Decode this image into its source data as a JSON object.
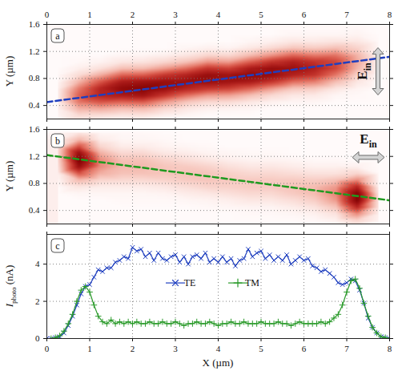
{
  "chart_data": [
    {
      "type": "heatmap",
      "panel": "a",
      "ylabel": "Y (µm)",
      "grid": true,
      "xlim": [
        0,
        8
      ],
      "xticks": [
        0,
        1,
        2,
        3,
        4,
        5,
        6,
        7,
        8
      ],
      "ylim": [
        0.2,
        1.6
      ],
      "yticks": [
        0.4,
        0.8,
        1.2,
        1.6
      ],
      "x": [
        0.25,
        0.75,
        1.25,
        1.75,
        2.25,
        2.75,
        3.25,
        3.75,
        4.25,
        4.75,
        5.25,
        5.75,
        6.25,
        6.75,
        7.25,
        7.75
      ],
      "y": [
        0.05,
        0.15,
        0.25,
        0.35,
        0.45,
        0.55,
        0.65,
        0.75,
        0.85,
        0.95,
        1.05,
        1.15,
        1.25,
        1.35,
        1.45,
        1.55
      ],
      "z": [
        [
          0,
          1,
          2,
          4,
          5,
          5,
          4,
          2,
          1,
          0,
          0,
          0,
          0,
          0,
          0,
          0
        ],
        [
          1,
          5,
          13,
          27,
          43,
          50,
          43,
          27,
          13,
          5,
          1,
          0,
          0,
          0,
          0,
          0
        ],
        [
          0,
          3,
          11,
          29,
          53,
          72,
          72,
          53,
          29,
          11,
          3,
          0,
          0,
          0,
          0,
          0
        ],
        [
          0,
          2,
          8,
          23,
          49,
          77,
          90,
          77,
          49,
          23,
          8,
          2,
          0,
          0,
          0,
          0
        ],
        [
          0,
          2,
          9,
          24,
          51,
          82,
          95,
          82,
          51,
          24,
          9,
          2,
          0,
          0,
          0,
          0
        ],
        [
          0,
          0,
          4,
          14,
          34,
          64,
          86,
          86,
          64,
          34,
          14,
          4,
          0,
          0,
          0,
          0
        ],
        [
          0,
          0,
          2,
          8,
          21,
          46,
          73,
          85,
          73,
          46,
          21,
          8,
          2,
          0,
          0,
          0
        ],
        [
          0,
          0,
          0,
          4,
          14,
          34,
          64,
          86,
          86,
          64,
          34,
          14,
          4,
          0,
          0,
          0
        ],
        [
          0,
          0,
          0,
          3,
          13,
          32,
          60,
          82,
          82,
          60,
          32,
          13,
          3,
          0,
          0,
          0
        ],
        [
          0,
          0,
          0,
          2,
          8,
          23,
          49,
          77,
          90,
          77,
          49,
          23,
          8,
          2,
          0,
          0
        ],
        [
          0,
          0,
          0,
          0,
          4,
          14,
          34,
          64,
          86,
          86,
          64,
          34,
          14,
          4,
          0,
          0
        ],
        [
          0,
          0,
          0,
          0,
          2,
          8,
          21,
          46,
          73,
          85,
          73,
          46,
          21,
          8,
          2,
          0
        ],
        [
          0,
          0,
          0,
          0,
          2,
          7,
          19,
          41,
          65,
          75,
          65,
          41,
          19,
          7,
          2,
          0
        ],
        [
          0,
          0,
          0,
          0,
          0,
          2,
          9,
          23,
          43,
          58,
          58,
          43,
          23,
          9,
          2,
          0
        ],
        [
          0,
          0,
          0,
          0,
          0,
          1,
          3,
          8,
          16,
          26,
          30,
          26,
          16,
          8,
          3,
          1
        ],
        [
          0,
          0,
          0,
          0,
          0,
          0,
          0,
          0,
          1,
          2,
          3,
          3,
          2,
          1,
          0,
          0
        ]
      ],
      "zlim": [
        0,
        100
      ],
      "line": {
        "x": [
          0,
          8
        ],
        "y": [
          0.45,
          1.12
        ],
        "color": "#1f3fbf",
        "line_style": "dashed"
      },
      "annotation": {
        "main": "E",
        "sub": "in",
        "orientation": "vertical"
      }
    },
    {
      "type": "heatmap",
      "panel": "b",
      "ylabel": "Y (µm)",
      "grid": true,
      "tick_labels": "y",
      "xlim": [
        0,
        8
      ],
      "xticks": [
        0,
        1,
        2,
        3,
        4,
        5,
        6,
        7,
        8
      ],
      "ylim": [
        0.2,
        1.6
      ],
      "yticks": [
        0.4,
        0.8,
        1.2,
        1.6
      ],
      "x": [
        0.25,
        0.75,
        1.25,
        1.75,
        2.25,
        2.75,
        3.25,
        3.75,
        4.25,
        4.75,
        5.25,
        5.75,
        6.25,
        6.75,
        7.25,
        7.75
      ],
      "y": [
        0.05,
        0.15,
        0.25,
        0.35,
        0.45,
        0.55,
        0.65,
        0.75,
        0.85,
        0.95,
        1.05,
        1.15,
        1.25,
        1.35,
        1.45,
        1.55
      ],
      "z": [
        [
          0,
          0,
          0,
          0,
          0,
          0,
          0,
          0,
          2,
          5,
          9,
          12,
          12,
          9,
          5,
          2
        ],
        [
          0,
          0,
          0,
          0,
          0,
          0,
          2,
          9,
          25,
          54,
          86,
          100,
          86,
          54,
          25,
          9
        ],
        [
          0,
          0,
          0,
          0,
          0,
          0,
          2,
          6,
          15,
          28,
          38,
          38,
          28,
          15,
          6,
          2
        ],
        [
          0,
          0,
          0,
          0,
          0,
          1,
          2,
          6,
          14,
          22,
          25,
          22,
          14,
          6,
          2,
          1
        ],
        [
          0,
          0,
          0,
          0,
          0,
          1,
          2,
          6,
          14,
          22,
          25,
          22,
          14,
          6,
          2,
          1
        ],
        [
          0,
          0,
          0,
          0,
          0,
          1,
          3,
          8,
          16,
          21,
          21,
          16,
          8,
          3,
          1,
          0
        ],
        [
          0,
          0,
          0,
          0,
          0,
          2,
          6,
          12,
          19,
          22,
          19,
          12,
          6,
          2,
          0,
          0
        ],
        [
          0,
          0,
          0,
          0,
          1,
          3,
          8,
          16,
          21,
          21,
          16,
          8,
          3,
          1,
          0,
          0
        ],
        [
          0,
          0,
          0,
          0,
          2,
          5,
          11,
          17,
          20,
          17,
          11,
          5,
          2,
          0,
          0,
          0
        ],
        [
          0,
          0,
          0,
          1,
          3,
          8,
          14,
          19,
          19,
          14,
          8,
          3,
          1,
          0,
          0,
          0
        ],
        [
          0,
          0,
          0,
          1,
          3,
          8,
          14,
          19,
          19,
          14,
          8,
          3,
          1,
          0,
          0,
          0
        ],
        [
          0,
          0,
          0,
          2,
          6,
          12,
          19,
          22,
          19,
          12,
          6,
          2,
          0,
          0,
          0,
          0
        ],
        [
          0,
          0,
          1,
          4,
          10,
          18,
          24,
          24,
          18,
          10,
          4,
          1,
          0,
          0,
          0,
          0
        ],
        [
          0,
          1,
          4,
          10,
          22,
          34,
          40,
          34,
          22,
          10,
          4,
          1,
          0,
          0,
          0,
          0
        ],
        [
          0,
          4,
          15,
          38,
          71,
          96,
          96,
          71,
          38,
          15,
          4,
          0,
          0,
          0,
          0,
          0
        ],
        [
          0,
          1,
          3,
          5,
          9,
          10,
          9,
          5,
          3,
          1,
          0,
          0,
          0,
          0,
          0,
          0
        ]
      ],
      "zlim": [
        0,
        100
      ],
      "line": {
        "x": [
          0,
          8
        ],
        "y": [
          1.22,
          0.55
        ],
        "color": "#1f9a1f",
        "line_style": "dashed"
      },
      "annotation": {
        "main": "E",
        "sub": "in",
        "orientation": "horizontal"
      }
    },
    {
      "type": "line",
      "panel": "c",
      "xlabel": "X (µm)",
      "ylabel": {
        "main": "I",
        "sub": "photo",
        "rest": " (nA)"
      },
      "grid": true,
      "legend": "center",
      "xlim": [
        0,
        8
      ],
      "xticks": [
        0,
        1,
        2,
        3,
        4,
        5,
        6,
        7,
        8
      ],
      "ylim": [
        0,
        5.6
      ],
      "yticks": [
        0,
        2,
        4
      ],
      "x": [
        0,
        0.1,
        0.2,
        0.3,
        0.4,
        0.5,
        0.6,
        0.7,
        0.8,
        0.9,
        1,
        1.1,
        1.2,
        1.3,
        1.4,
        1.5,
        1.6,
        1.7,
        1.8,
        1.9,
        2,
        2.1,
        2.2,
        2.3,
        2.4,
        2.5,
        2.6,
        2.7,
        2.8,
        2.9,
        3,
        3.1,
        3.2,
        3.3,
        3.4,
        3.5,
        3.6,
        3.7,
        3.8,
        3.9,
        4,
        4.1,
        4.2,
        4.3,
        4.4,
        4.5,
        4.6,
        4.7,
        4.8,
        4.9,
        5,
        5.1,
        5.2,
        5.3,
        5.4,
        5.5,
        5.6,
        5.7,
        5.8,
        5.9,
        6,
        6.1,
        6.2,
        6.3,
        6.4,
        6.5,
        6.6,
        6.7,
        6.8,
        6.9,
        7,
        7.1,
        7.2,
        7.3,
        7.4,
        7.5,
        7.6,
        7.7,
        7.8,
        7.9,
        8
      ],
      "series": [
        {
          "name": "TE",
          "color": "#1f3fbf",
          "marker": "times",
          "line_style": "solid",
          "values": [
            0,
            0,
            0.05,
            0.1,
            0.3,
            0.7,
            1.2,
            1.8,
            2.4,
            2.8,
            2.9,
            3.3,
            3.7,
            3.6,
            3.8,
            3.8,
            4.1,
            4.2,
            4.4,
            4.3,
            4.9,
            4.7,
            4.8,
            4.4,
            4.6,
            4.2,
            4.6,
            4.3,
            4.2,
            4.4,
            4.5,
            4.1,
            4.4,
            4.0,
            4.4,
            4.5,
            4.3,
            4.6,
            4.1,
            4.3,
            4.1,
            4.4,
            4.1,
            4.3,
            3.9,
            4.2,
            4.3,
            4.8,
            4.4,
            4.6,
            4.7,
            4.3,
            4.5,
            4.2,
            4.4,
            4.2,
            4.5,
            4.0,
            4.2,
            4.4,
            4.2,
            4.3,
            3.9,
            3.8,
            3.6,
            3.7,
            3.5,
            3.3,
            3.0,
            2.9,
            3.0,
            3.2,
            3.1,
            2.6,
            1.9,
            1.1,
            0.6,
            0.3,
            0.1,
            0.05,
            0
          ]
        },
        {
          "name": "TM",
          "color": "#2a9a2a",
          "marker": "plus",
          "line_style": "solid",
          "values": [
            0,
            0,
            0.05,
            0.15,
            0.4,
            0.8,
            1.3,
            2.0,
            2.6,
            2.8,
            2.5,
            1.8,
            1.2,
            0.9,
            0.8,
            1.0,
            0.8,
            0.9,
            0.8,
            0.9,
            0.8,
            0.9,
            0.8,
            0.8,
            0.9,
            0.8,
            0.8,
            0.9,
            0.8,
            0.8,
            0.9,
            0.8,
            0.7,
            0.8,
            0.8,
            0.9,
            0.8,
            0.8,
            0.9,
            0.8,
            0.7,
            0.8,
            0.8,
            0.9,
            0.8,
            0.8,
            0.9,
            0.8,
            0.8,
            0.8,
            0.9,
            0.8,
            0.8,
            0.8,
            0.9,
            0.8,
            0.8,
            0.7,
            0.8,
            0.9,
            0.8,
            0.8,
            0.8,
            0.8,
            0.9,
            0.8,
            0.9,
            1.1,
            1.3,
            1.8,
            2.5,
            3.1,
            3.2,
            2.7,
            1.9,
            1.2,
            0.6,
            0.3,
            0.1,
            0.05,
            0
          ]
        }
      ]
    }
  ]
}
